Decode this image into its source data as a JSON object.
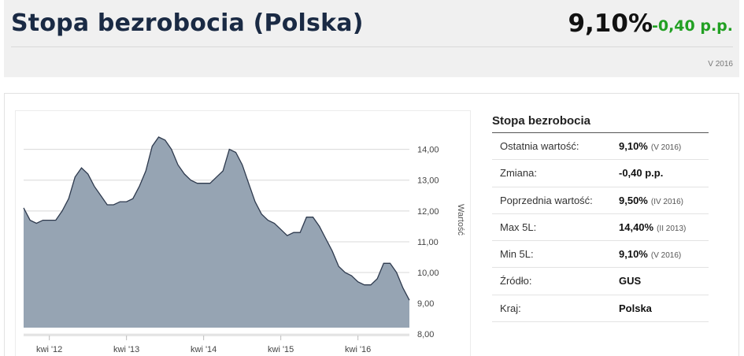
{
  "header": {
    "title": "Stopa bezrobocia (Polska)",
    "value": "9,10%",
    "change": "-0,40 p.p.",
    "period": "V 2016"
  },
  "info": {
    "title": "Stopa bezrobocia",
    "rows": [
      {
        "label": "Ostatnia wartość:",
        "value": "9,10%",
        "date": "(V 2016)"
      },
      {
        "label": "Zmiana:",
        "value": "-0,40 p.p.",
        "date": ""
      },
      {
        "label": "Poprzednia wartość:",
        "value": "9,50%",
        "date": "(IV 2016)"
      },
      {
        "label": "Max 5L:",
        "value": "14,40%",
        "date": "(II 2013)"
      },
      {
        "label": "Min 5L:",
        "value": "9,10%",
        "date": "(V 2016)"
      },
      {
        "label": "Źródło:",
        "value": "GUS",
        "date": ""
      },
      {
        "label": "Kraj:",
        "value": "Polska",
        "date": ""
      }
    ]
  },
  "colors": {
    "area_fill": "#96a4b3",
    "area_line": "#2e3a4e",
    "change_positive": "#22a023",
    "title": "#1a2a44"
  },
  "chart_data": {
    "type": "area",
    "ylabel": "Wartość",
    "ylim": [
      7.8,
      14.6
    ],
    "yticks": [
      "14,00",
      "13,00",
      "12,00",
      "11,00",
      "10,00",
      "9,00",
      "8,00"
    ],
    "ytick_values": [
      14,
      13,
      12,
      11,
      10,
      9,
      8
    ],
    "xticks": [
      "kwi '12",
      "kwi '13",
      "kwi '14",
      "kwi '15",
      "kwi '16"
    ],
    "xtick_months": [
      4,
      16,
      28,
      40,
      52
    ],
    "x_months": [
      0,
      1,
      2,
      3,
      4,
      5,
      6,
      7,
      8,
      9,
      10,
      11,
      12,
      13,
      14,
      15,
      16,
      17,
      18,
      19,
      20,
      21,
      22,
      23,
      24,
      25,
      26,
      27,
      28,
      29,
      30,
      31,
      32,
      33,
      34,
      35,
      36,
      37,
      38,
      39,
      40,
      41,
      42,
      43,
      44,
      45,
      46,
      47,
      48,
      49,
      50,
      51,
      52,
      53,
      54,
      55,
      56,
      57,
      58,
      59,
      60
    ],
    "values": [
      12.1,
      11.7,
      11.6,
      11.7,
      11.7,
      11.7,
      12.0,
      12.4,
      13.1,
      13.4,
      13.2,
      12.8,
      12.5,
      12.2,
      12.2,
      12.3,
      12.3,
      12.4,
      12.8,
      13.3,
      14.1,
      14.4,
      14.3,
      14.0,
      13.5,
      13.2,
      13.0,
      12.9,
      12.9,
      12.9,
      13.1,
      13.3,
      14.0,
      13.9,
      13.5,
      12.9,
      12.3,
      11.9,
      11.7,
      11.6,
      11.4,
      11.2,
      11.3,
      11.3,
      11.8,
      11.8,
      11.5,
      11.1,
      10.7,
      10.2,
      10.0,
      9.9,
      9.7,
      9.6,
      9.6,
      9.8,
      10.3,
      10.3,
      10.0,
      9.5,
      9.1
    ]
  }
}
